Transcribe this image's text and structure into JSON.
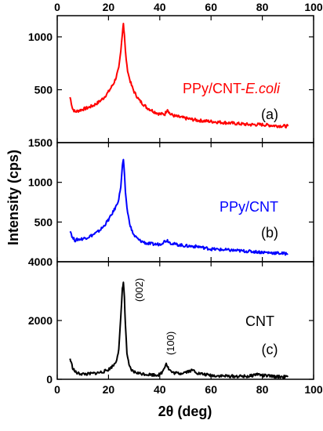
{
  "chart_data": {
    "type": "line",
    "xlabel": "2θ (deg)",
    "ylabel": "Intensity (cps)",
    "xlim": [
      0,
      100
    ],
    "x_ticks": [
      0,
      20,
      40,
      60,
      80,
      100
    ],
    "grid": false,
    "panels": [
      {
        "id": "a",
        "series_label_prefix": "PPy/CNT-",
        "series_label_italic": "E.coli",
        "panel_letter": "(a)",
        "color": "#ff0000",
        "ylim": [
          0,
          1200
        ],
        "y_ticks": [
          500,
          1000
        ],
        "x": [
          5,
          6,
          7,
          8,
          10,
          12,
          14,
          16,
          18,
          20,
          21,
          22,
          23,
          24,
          24.8,
          25.4,
          25.8,
          26.2,
          26.6,
          27.2,
          28,
          29,
          30,
          32,
          35,
          38,
          40,
          42,
          43,
          44,
          46,
          50,
          55,
          60,
          65,
          70,
          75,
          80,
          85,
          90
        ],
        "y": [
          430,
          320,
          290,
          300,
          315,
          330,
          350,
          380,
          420,
          480,
          520,
          560,
          620,
          700,
          860,
          1040,
          1130,
          1020,
          860,
          720,
          620,
          540,
          480,
          400,
          330,
          290,
          270,
          270,
          320,
          270,
          250,
          230,
          210,
          200,
          190,
          180,
          170,
          170,
          160,
          155
        ]
      },
      {
        "id": "b",
        "series_label": "PPy/CNT",
        "panel_letter": "(b)",
        "color": "#0000ff",
        "ylim": [
          0,
          1500
        ],
        "y_ticks": [
          500,
          1000
        ],
        "x": [
          5,
          6,
          7,
          8,
          10,
          12,
          14,
          16,
          18,
          20,
          21,
          22,
          23,
          24,
          24.8,
          25.4,
          25.8,
          26.2,
          26.6,
          27.2,
          28,
          29,
          30,
          32,
          35,
          38,
          40,
          42,
          43,
          44,
          46,
          50,
          55,
          60,
          65,
          70,
          75,
          80,
          85,
          90
        ],
        "y": [
          400,
          300,
          270,
          280,
          290,
          310,
          340,
          380,
          440,
          530,
          580,
          640,
          700,
          790,
          950,
          1200,
          1290,
          1100,
          880,
          680,
          520,
          400,
          330,
          270,
          230,
          220,
          220,
          260,
          270,
          240,
          220,
          200,
          190,
          160,
          150,
          140,
          130,
          120,
          110,
          100
        ]
      },
      {
        "id": "c",
        "series_label": "CNT",
        "panel_letter": "(c)",
        "color": "#000000",
        "ylim": [
          0,
          4000
        ],
        "y_ticks": [
          0,
          2000
        ],
        "peak_labels": [
          "(002)",
          "(100)"
        ],
        "x": [
          5,
          6,
          7,
          8,
          10,
          12,
          14,
          16,
          18,
          20,
          22,
          23,
          24,
          24.8,
          25.4,
          25.8,
          26.2,
          26.6,
          27.2,
          28,
          29,
          30,
          32,
          35,
          38,
          40,
          41,
          42.5,
          43.5,
          45,
          48,
          50,
          53,
          55,
          60,
          65,
          70,
          75,
          78,
          80,
          85,
          90
        ],
        "y": [
          700,
          400,
          250,
          200,
          180,
          180,
          200,
          220,
          260,
          330,
          480,
          620,
          1000,
          2100,
          3100,
          3300,
          2800,
          1800,
          900,
          450,
          300,
          250,
          200,
          170,
          150,
          160,
          250,
          550,
          350,
          220,
          200,
          250,
          310,
          200,
          130,
          110,
          100,
          100,
          180,
          130,
          90,
          80
        ]
      }
    ]
  }
}
